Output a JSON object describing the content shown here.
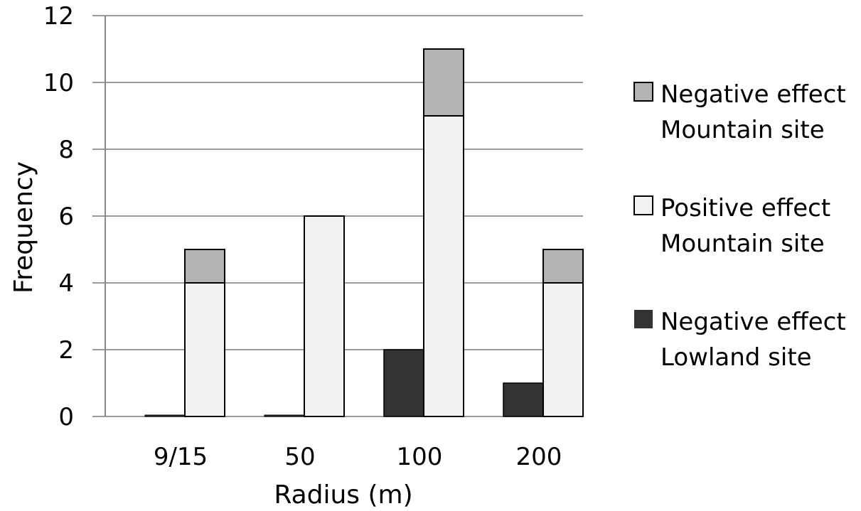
{
  "chart_data": {
    "type": "bar",
    "title": "",
    "xlabel": "Radius (m)",
    "ylabel": "Frequency",
    "ylim": [
      0,
      12
    ],
    "yticks": [
      0,
      2,
      4,
      6,
      8,
      10,
      12
    ],
    "categories": [
      "9/15",
      "50",
      "100",
      "200"
    ],
    "grid": true,
    "legend_position": "right",
    "series": [
      {
        "key": "lowland_negative",
        "name": "Negative effect Lowland site",
        "legend_lines": [
          "Negative effect",
          "Lowland site"
        ],
        "color": "#333333",
        "values": [
          0,
          0,
          2,
          1
        ]
      },
      {
        "key": "mountain_positive",
        "name": "Positive effect Mountain site",
        "legend_lines": [
          "Positive effect",
          "Mountain site"
        ],
        "color": "#f2f2f2",
        "stack": "mountain",
        "values": [
          4,
          6,
          9,
          4
        ]
      },
      {
        "key": "mountain_negative",
        "name": "Negative effect Mountain site",
        "legend_lines": [
          "Negative effect",
          "Mountain site"
        ],
        "color": "#b3b3b3",
        "stack": "mountain",
        "values": [
          1,
          0,
          2,
          1
        ]
      }
    ],
    "legend_order": [
      "mountain_negative",
      "mountain_positive",
      "lowland_negative"
    ]
  }
}
